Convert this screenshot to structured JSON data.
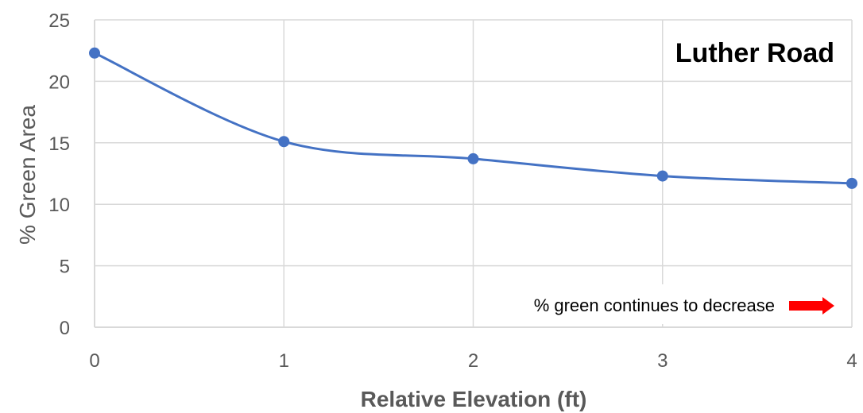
{
  "chart_data": {
    "type": "line",
    "title": "Luther Road",
    "xlabel": "Relative Elevation (ft)",
    "ylabel": "% Green Area",
    "x": [
      0,
      1,
      2,
      3,
      4
    ],
    "series": [
      {
        "values": [
          22.3,
          15.1,
          13.7,
          12.3,
          11.7
        ]
      }
    ],
    "xlim": [
      0,
      4
    ],
    "ylim": [
      0,
      25
    ],
    "xticks": [
      "0",
      "1",
      "2",
      "3",
      "4"
    ],
    "yticks": [
      "0",
      "5",
      "10",
      "15",
      "20",
      "25"
    ],
    "grid": true,
    "smooth": true,
    "annotation": "% green continues to decrease",
    "colors": {
      "line": "#4472C4",
      "grid": "#D9D9D9",
      "arrow": "#FF0000"
    }
  }
}
